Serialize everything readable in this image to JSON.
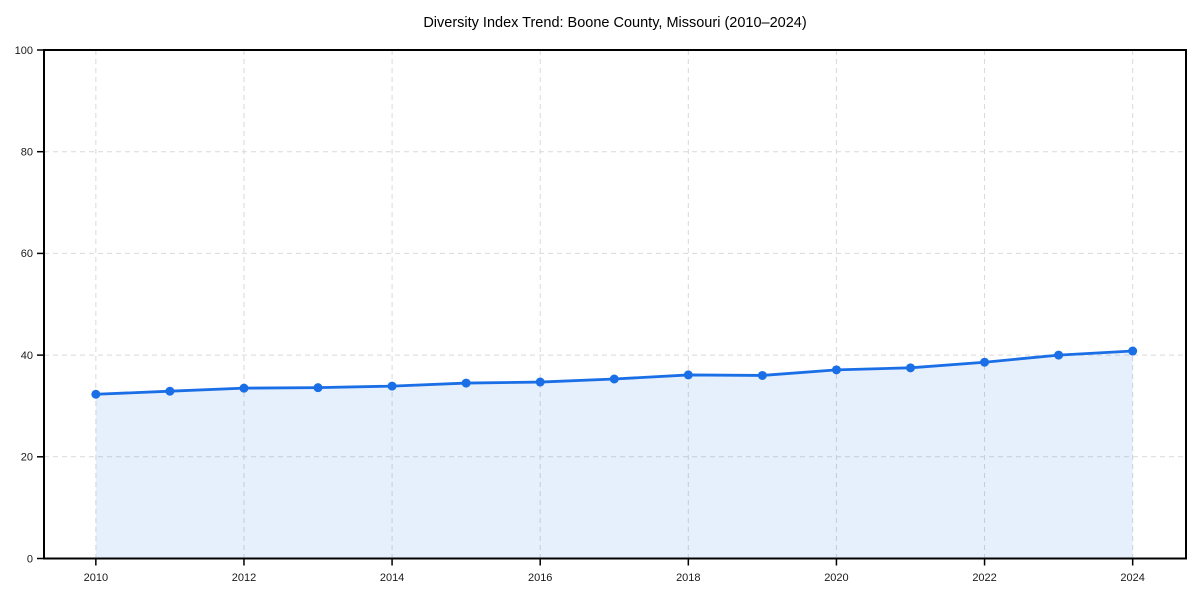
{
  "chart_data": {
    "type": "line",
    "title": "Diversity Index Trend: Boone County, Missouri (2010–2024)",
    "series": [
      {
        "name": "Diversity Index",
        "x": [
          2010,
          2011,
          2012,
          2013,
          2014,
          2015,
          2016,
          2017,
          2018,
          2019,
          2020,
          2021,
          2022,
          2023,
          2024
        ],
        "values": [
          32.3,
          32.9,
          33.5,
          33.6,
          33.9,
          34.5,
          34.7,
          35.3,
          36.1,
          36.0,
          37.1,
          37.5,
          38.6,
          40.0,
          40.8
        ]
      }
    ],
    "xticks": [
      2010,
      2012,
      2014,
      2016,
      2018,
      2020,
      2022,
      2024
    ],
    "xtick_labels": [
      "2010",
      "2012",
      "2014",
      "2016",
      "2018",
      "2020",
      "2022",
      "2024"
    ],
    "yticks": [
      0,
      20,
      40,
      60,
      80,
      100
    ],
    "ytick_labels": [
      "0",
      "20",
      "40",
      "60",
      "80",
      "100"
    ],
    "xlim": [
      2009.3,
      2024.72
    ],
    "ylim": [
      0,
      100
    ],
    "grid": true,
    "grid_style": "dashed",
    "legend": false,
    "area_fill": true,
    "marker": "circle",
    "colors": {
      "line": "#1b6fe6",
      "marker": "#1b6fe6",
      "area_fill": "rgba(27,111,230,0.11)",
      "grid": "#d9d9d9",
      "frame": "#000000",
      "background": "#ffffff",
      "tick_text": "#1a1a1a",
      "title_text": "#000000"
    }
  }
}
